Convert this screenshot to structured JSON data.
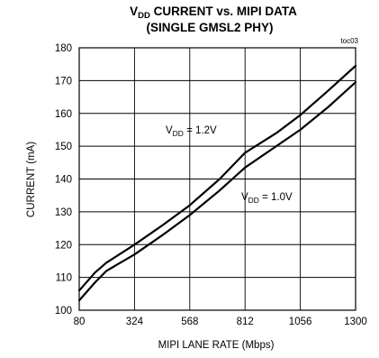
{
  "chart_data": {
    "type": "line",
    "title": {
      "part1": "V",
      "sub": "DD",
      "part2": " CURRENT vs. MIPI DATA"
    },
    "subtitle": "(SINGLE GMSL2 PHY)",
    "figure_id": "toc03",
    "xlabel": "MIPI LANE RATE (Mbps)",
    "ylabel": "CURRENT (mA)",
    "xlim": [
      80,
      1300
    ],
    "ylim": [
      100,
      180
    ],
    "xticks": [
      80,
      324,
      568,
      812,
      1056,
      1300
    ],
    "yticks": [
      100,
      110,
      120,
      130,
      140,
      150,
      160,
      170,
      180
    ],
    "grid": true,
    "series": [
      {
        "name": "VDD = 1.2V",
        "label": {
          "main": "V",
          "sub": "DD",
          "rest": " = 1.2V"
        },
        "x": [
          80,
          150,
          200,
          324,
          450,
          568,
          700,
          812,
          950,
          1056,
          1180,
          1300
        ],
        "y": [
          106,
          111.5,
          114.5,
          120,
          126,
          132,
          140,
          148,
          154,
          159.5,
          167,
          174.5
        ]
      },
      {
        "name": "VDD = 1.0V",
        "label": {
          "main": "V",
          "sub": "DD",
          "rest": " = 1.0V"
        },
        "x": [
          80,
          150,
          200,
          324,
          450,
          568,
          700,
          812,
          950,
          1056,
          1180,
          1300
        ],
        "y": [
          103,
          108.5,
          112,
          117,
          123,
          129,
          136.5,
          143.5,
          150,
          155,
          162,
          169.5
        ]
      }
    ]
  }
}
